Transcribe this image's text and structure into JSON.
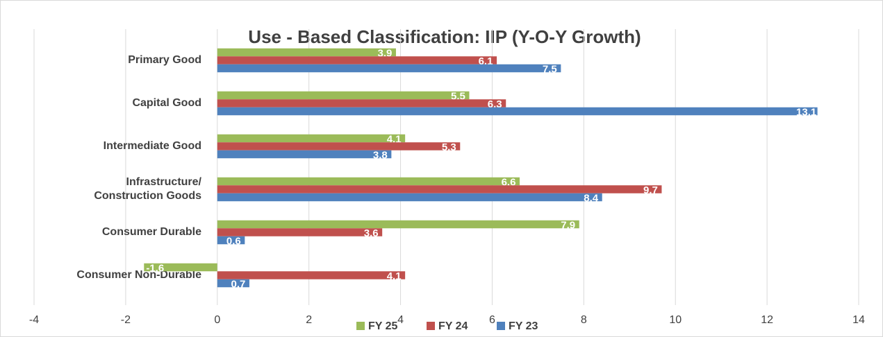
{
  "chart_data": {
    "type": "hbar",
    "title": "Use - Based Classification: IIP (Y-O-Y Growth)",
    "categories": [
      "Primary Good",
      "Capital Good",
      "Intermediate Good",
      "Infrastructure/\nConstruction Goods",
      "Consumer Durable",
      "Consumer Non-Durable"
    ],
    "series": [
      {
        "name": "FY 25",
        "color": "#9bbb59",
        "values": [
          3.9,
          5.5,
          4.1,
          6.6,
          7.9,
          -1.6
        ]
      },
      {
        "name": "FY 24",
        "color": "#c0504d",
        "values": [
          6.1,
          6.3,
          5.3,
          9.7,
          3.6,
          4.1
        ]
      },
      {
        "name": "FY 23",
        "color": "#4f81bd",
        "values": [
          7.5,
          13.1,
          3.8,
          8.4,
          0.6,
          0.7
        ]
      }
    ],
    "xlim": [
      -4,
      14
    ],
    "xticks": [
      -4,
      -2,
      0,
      2,
      4,
      6,
      8,
      10,
      12,
      14
    ],
    "grid": true,
    "legend": "bottom"
  }
}
